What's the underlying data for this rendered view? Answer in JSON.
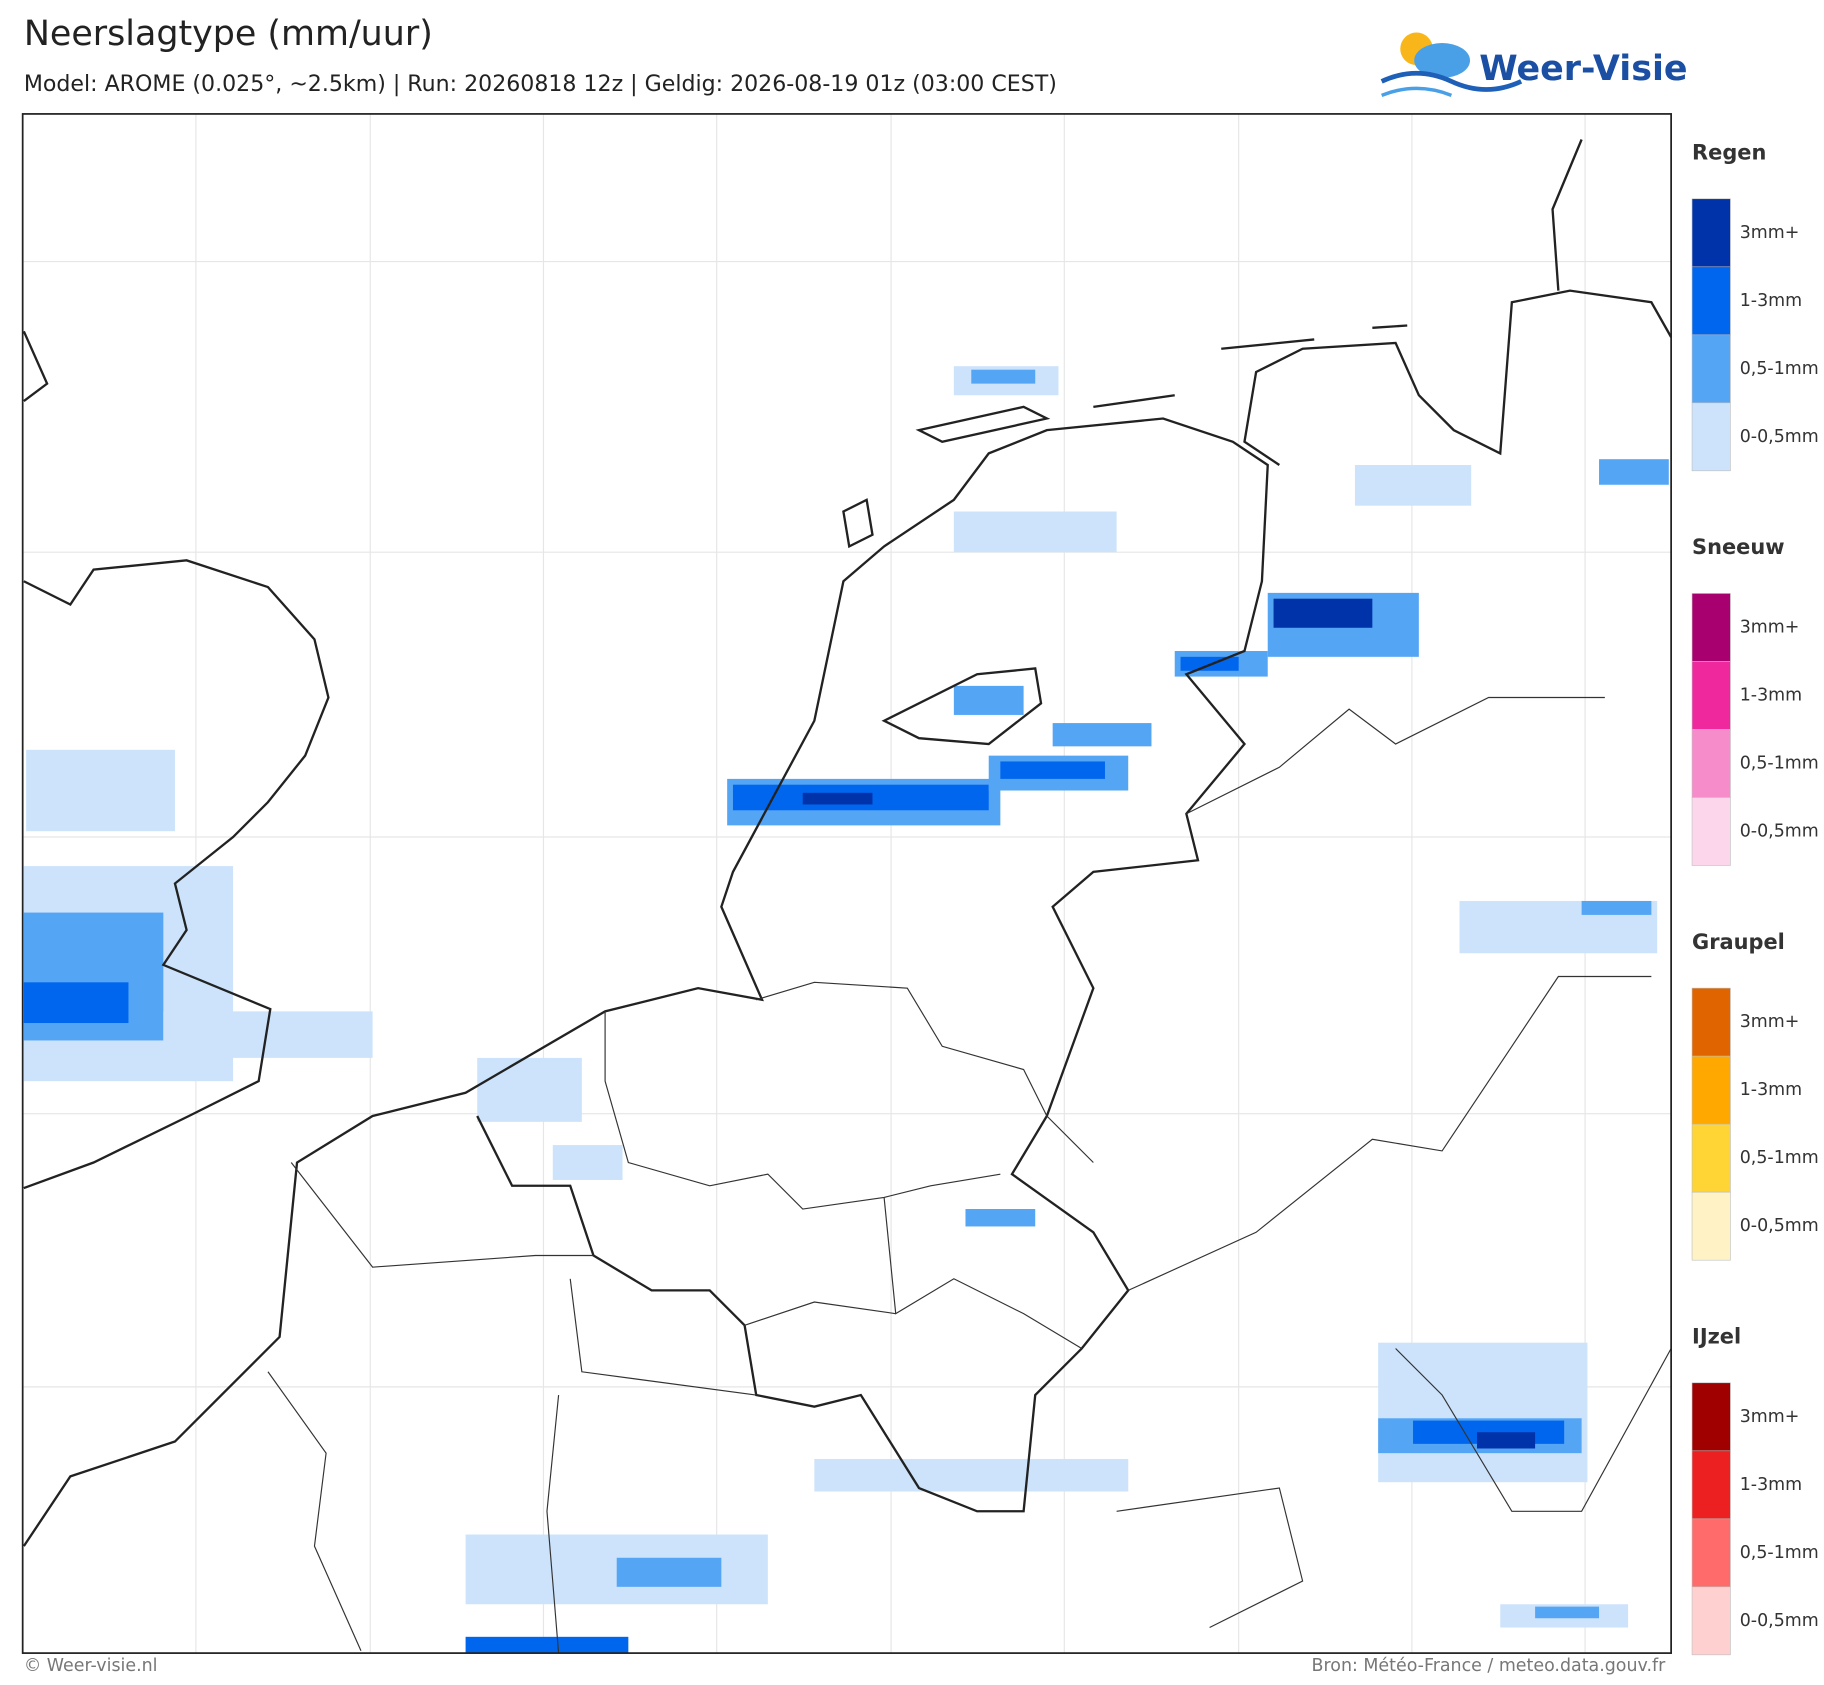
{
  "header": {
    "title": "Neerslagtype (mm/uur)",
    "subtitle": "Model: AROME (0.025°, ~2.5km)  |  Run: 20260818 12z  |  Geldig: 2026-08-19 01z (03:00 CEST)",
    "logo": "Weer-Visie"
  },
  "legend": [
    {
      "name": "Regen",
      "items": [
        {
          "label": "3mm+",
          "color": "#0033aa"
        },
        {
          "label": "1-3mm",
          "color": "#0066ee"
        },
        {
          "label": "0,5-1mm",
          "color": "#55a5f5"
        },
        {
          "label": "0-0,5mm",
          "color": "#cce3fb"
        }
      ]
    },
    {
      "name": "Sneeuw",
      "items": [
        {
          "label": "3mm+",
          "color": "#a8006e"
        },
        {
          "label": "1-3mm",
          "color": "#f0289e"
        },
        {
          "label": "0,5-1mm",
          "color": "#f78ccb"
        },
        {
          "label": "0-0,5mm",
          "color": "#fcd7ec"
        }
      ]
    },
    {
      "name": "Graupel",
      "items": [
        {
          "label": "3mm+",
          "color": "#e06400"
        },
        {
          "label": "1-3mm",
          "color": "#ffa800"
        },
        {
          "label": "0,5-1mm",
          "color": "#ffd535"
        },
        {
          "label": "0-0,5mm",
          "color": "#fff3c5"
        }
      ]
    },
    {
      "name": "IJzel",
      "items": [
        {
          "label": "3mm+",
          "color": "#a00000"
        },
        {
          "label": "1-3mm",
          "color": "#ec2020"
        },
        {
          "label": "0,5-1mm",
          "color": "#ff6b6b"
        },
        {
          "label": "0-0,5mm",
          "color": "#ffd0d0"
        }
      ]
    }
  ],
  "footer": {
    "left": "© Weer-visie.nl",
    "right": "Bron: Météo-France / meteo.data.gouv.fr"
  }
}
